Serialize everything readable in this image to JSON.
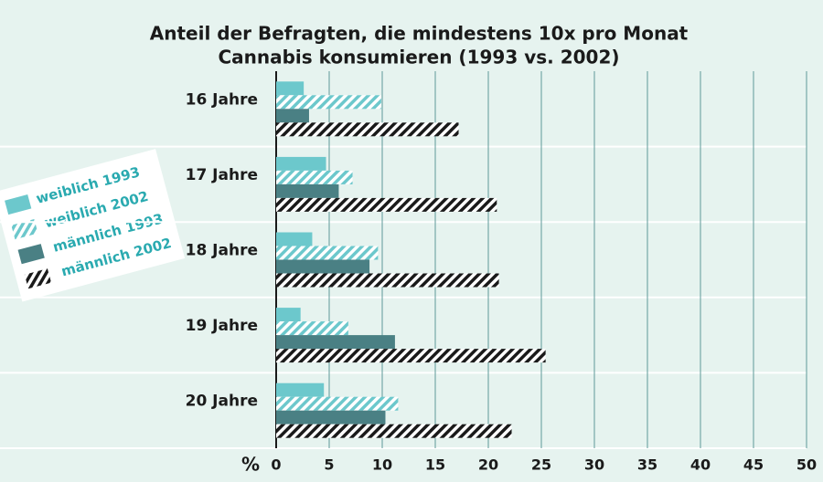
{
  "chart_data": {
    "type": "bar",
    "orientation": "horizontal",
    "title": [
      "Anteil der Befragten, die mindestens 10x pro Monat",
      "Cannabis konsumieren (1993 vs. 2002)"
    ],
    "xlabel": "%",
    "categories": [
      "16 Jahre",
      "17 Jahre",
      "18 Jahre",
      "19 Jahre",
      "20 Jahre"
    ],
    "series": [
      {
        "name": "weiblich 1993",
        "color": "#6cc8cc",
        "hatch": false,
        "values": [
          2.6,
          4.7,
          3.4,
          2.3,
          4.5
        ]
      },
      {
        "name": "weiblich 2002",
        "color": "#6cc8cc",
        "hatch": true,
        "values": [
          9.9,
          7.2,
          9.6,
          6.8,
          11.5
        ]
      },
      {
        "name": "männlich 1993",
        "color": "#4a8084",
        "hatch": false,
        "values": [
          3.1,
          5.9,
          8.8,
          11.2,
          10.3
        ]
      },
      {
        "name": "männlich 2002",
        "color": "#1a1a1a",
        "hatch": true,
        "values": [
          17.2,
          20.8,
          21.0,
          25.4,
          22.2
        ]
      }
    ],
    "xlim": [
      0,
      50
    ],
    "xticks": [
      0,
      5,
      10,
      15,
      20,
      25,
      30,
      35,
      40,
      45,
      50
    ],
    "grid": true,
    "legend": "left"
  }
}
